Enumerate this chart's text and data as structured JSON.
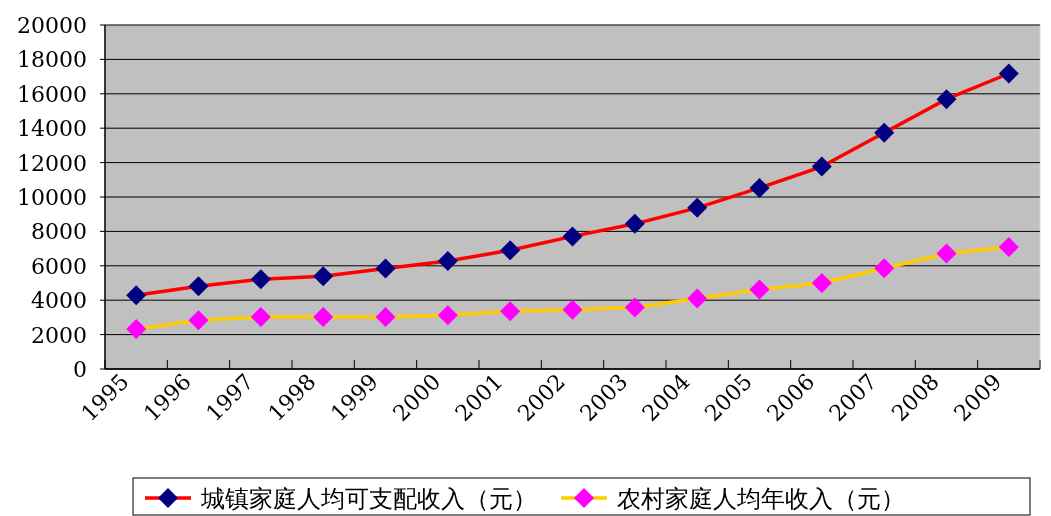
{
  "chart_data": {
    "type": "line",
    "categories": [
      "1995",
      "1996",
      "1997",
      "1998",
      "1999",
      "2000",
      "2001",
      "2002",
      "2003",
      "2004",
      "2005",
      "2006",
      "2007",
      "2008",
      "2009"
    ],
    "series": [
      {
        "name": "城镇家庭人均可支配收入（元）",
        "color": "#ff0000",
        "colors": [
          "#000080",
          "#000080",
          "#000080",
          "#000080",
          "#000080",
          "#000080",
          "#000080",
          "#000080",
          "#000080",
          "#000080",
          "#000080",
          "#000080",
          "#000080",
          "#000080",
          "#000080"
        ],
        "values": [
          4290,
          4810,
          5220,
          5390,
          5840,
          6280,
          6900,
          7710,
          8440,
          9370,
          10530,
          11770,
          13740,
          15690,
          17180
        ]
      },
      {
        "name": "农村家庭人均年收入（元）",
        "color": "#ffcc00",
        "colors": [
          "#ff00ff",
          "#ff00ff",
          "#ff00ff",
          "#ff00ff",
          "#ff00ff",
          "#ff00ff",
          "#ff00ff",
          "#ff00ff",
          "#ff00ff",
          "#ff00ff",
          "#ff00ff",
          "#ff00ff",
          "#ff00ff",
          "#ff00ff",
          "#ff00ff"
        ],
        "values": [
          2320,
          2840,
          3030,
          3030,
          3030,
          3130,
          3360,
          3440,
          3580,
          4100,
          4620,
          5000,
          5860,
          6710,
          7090
        ]
      }
    ],
    "ylim": [
      0,
      20000
    ],
    "yticks": [
      0,
      2000,
      4000,
      6000,
      8000,
      10000,
      12000,
      14000,
      16000,
      18000,
      20000
    ],
    "grid": "y",
    "legend": "bottom",
    "marker": "diamond",
    "line_style": "solid"
  }
}
